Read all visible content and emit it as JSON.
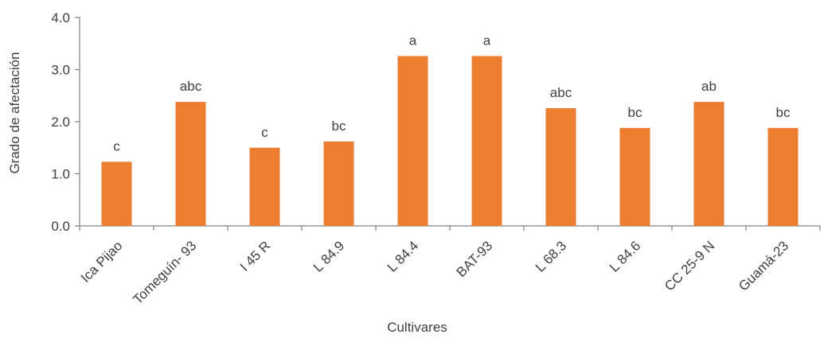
{
  "chart_data": {
    "type": "bar",
    "categories": [
      "Ica Pijao",
      "Tomeguín- 93",
      "I 45 R",
      "L 84.9",
      "L 84.4",
      "BAT-93",
      "L 68.3",
      "L 84.6",
      "CC 25-9 N",
      "Guamá-23"
    ],
    "values": [
      1.23,
      2.38,
      1.5,
      1.62,
      3.26,
      3.26,
      2.26,
      1.88,
      2.38,
      1.88
    ],
    "data_labels": [
      "c",
      "abc",
      "c",
      "bc",
      "a",
      "a",
      "abc",
      "bc",
      "ab",
      "bc"
    ],
    "title": "",
    "xlabel": "Cultivares",
    "ylabel": "Grado  de  afectación",
    "ylim": [
      0,
      4
    ],
    "yticks": [
      "0.0",
      "1.0",
      "2.0",
      "3.0",
      "4.0"
    ],
    "bar_color": "#ed7d31",
    "grid": false,
    "legend": "none"
  }
}
